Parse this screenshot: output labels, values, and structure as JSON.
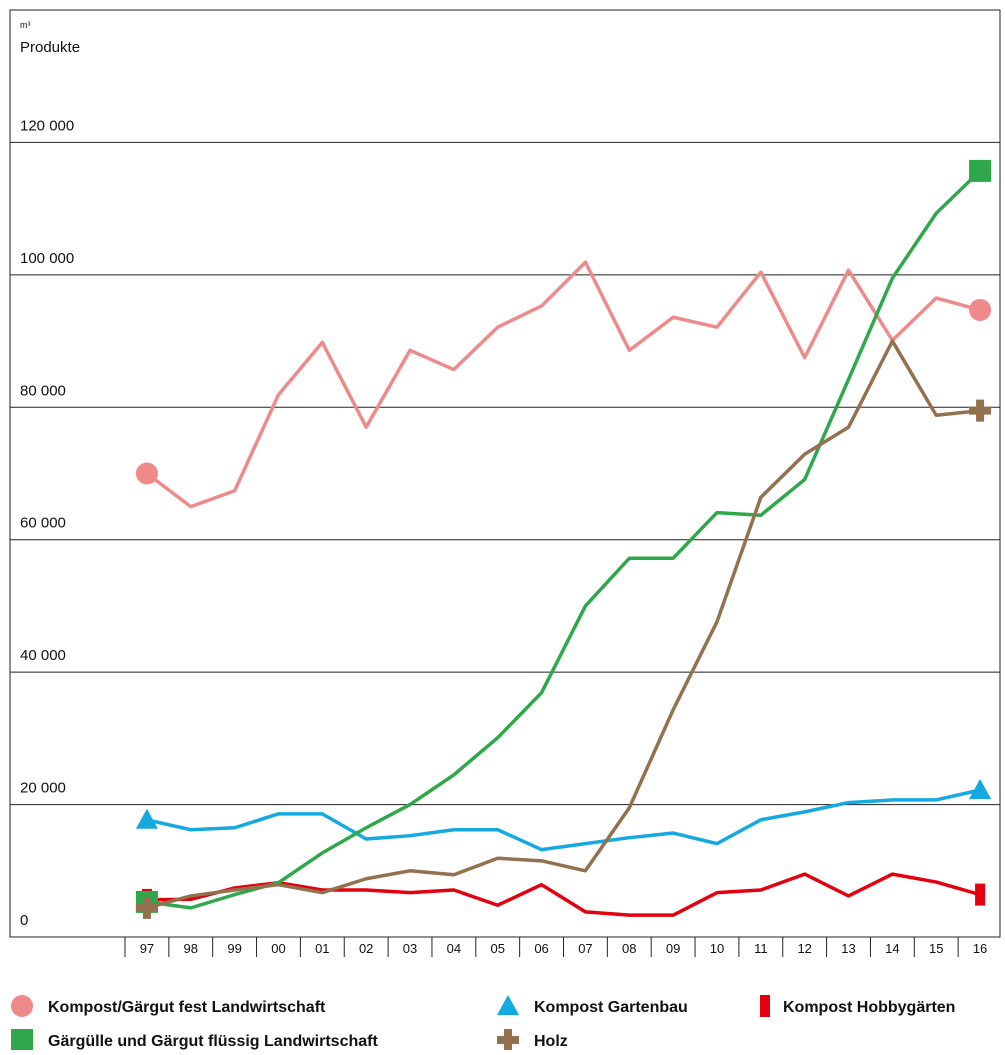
{
  "chart_data": {
    "type": "line",
    "y_label_unit": "m³",
    "y_label": "Produkte",
    "categories": [
      "97",
      "98",
      "99",
      "00",
      "01",
      "02",
      "03",
      "04",
      "05",
      "06",
      "07",
      "08",
      "09",
      "10",
      "11",
      "12",
      "13",
      "14",
      "15",
      "16"
    ],
    "ylim": [
      0,
      140000
    ],
    "yticks": [
      0,
      {
        "value": 20000,
        "label": "20 000"
      },
      {
        "value": 40000,
        "label": "40 000"
      },
      {
        "value": 60000,
        "label": "60 000"
      },
      {
        "value": 80000,
        "label": "80 000"
      },
      {
        "value": 100000,
        "label": "100 000"
      },
      {
        "value": 120000,
        "label": "120 000"
      }
    ],
    "grid": true,
    "series": [
      {
        "name": "Kompost/Gärgut fest Landwirtschaft",
        "color": "#f08a8a",
        "marker": "circle",
        "values": [
          70000,
          65000,
          67400,
          81900,
          89800,
          77000,
          88600,
          85700,
          92100,
          95300,
          101900,
          88600,
          93600,
          92100,
          100400,
          87500,
          100700,
          90100,
          96500,
          94700
        ]
      },
      {
        "name": "Kompost Gartenbau",
        "color": "#14a9e1",
        "marker": "triangle",
        "values": [
          17700,
          16200,
          16500,
          18600,
          18600,
          14800,
          15300,
          16200,
          16200,
          13200,
          14100,
          15000,
          15700,
          14100,
          17700,
          18900,
          20300,
          20700,
          20700,
          22200
        ]
      },
      {
        "name": "Kompost Hobbygärten",
        "color": "#e3000f",
        "marker": "bar",
        "values": [
          5600,
          5700,
          7400,
          8200,
          7100,
          7100,
          6700,
          7100,
          4800,
          7900,
          3800,
          3300,
          3300,
          6700,
          7100,
          9500,
          6200,
          9500,
          8300,
          6400
        ]
      },
      {
        "name": "Gärgülle und Gärgut flüssig Landwirtschaft",
        "color": "#2ea84a",
        "marker": "square",
        "values": [
          5300,
          4400,
          6400,
          8200,
          12700,
          16500,
          20000,
          24500,
          30100,
          36900,
          50000,
          57200,
          57200,
          64100,
          63700,
          69100,
          84200,
          99500,
          109300,
          115700
        ]
      },
      {
        "name": "Holz",
        "color": "#93704e",
        "marker": "cross",
        "values": [
          4400,
          6200,
          7100,
          7900,
          6700,
          8800,
          10000,
          9400,
          11900,
          11500,
          10000,
          19500,
          34300,
          47600,
          66400,
          72900,
          77000,
          90000,
          78800,
          79500
        ]
      }
    ]
  }
}
